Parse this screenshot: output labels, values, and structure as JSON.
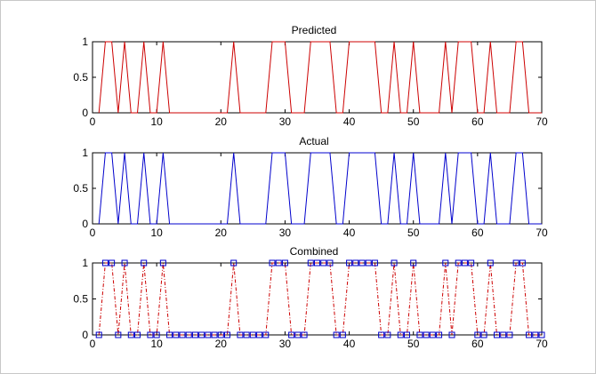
{
  "chart_data": [
    {
      "type": "line",
      "title": "Predicted",
      "xlim": [
        0,
        70
      ],
      "ylim": [
        0,
        1
      ],
      "xticks": [
        "0",
        "10",
        "20",
        "30",
        "40",
        "50",
        "60",
        "70"
      ],
      "yticks": [
        "0",
        "0.5",
        "1"
      ],
      "grid": false,
      "line_color": "#cc0000",
      "series": [
        {
          "x": [
            1,
            2,
            3,
            4,
            5,
            6,
            7,
            8,
            9,
            10,
            11,
            12,
            13,
            14,
            15,
            16,
            17,
            18,
            19,
            20,
            21,
            22,
            23,
            24,
            25,
            26,
            27,
            28,
            29,
            30,
            31,
            32,
            33,
            34,
            35,
            36,
            37,
            38,
            39,
            40,
            41,
            42,
            43,
            44,
            45,
            46,
            47,
            48,
            49,
            50,
            51,
            52,
            53,
            54,
            55,
            56,
            57,
            58,
            59,
            60,
            61,
            62,
            63,
            64,
            65,
            66,
            67,
            68,
            69,
            70
          ],
          "values": [
            0,
            1,
            1,
            0,
            1,
            0,
            0,
            1,
            0,
            0,
            1,
            0,
            0,
            0,
            0,
            0,
            0,
            0,
            0,
            0,
            0,
            1,
            0,
            0,
            0,
            0,
            0,
            1,
            1,
            1,
            0,
            0,
            0,
            1,
            1,
            1,
            1,
            0,
            0,
            1,
            1,
            1,
            1,
            1,
            0,
            0,
            1,
            0,
            0,
            1,
            0,
            0,
            0,
            0,
            1,
            0,
            1,
            1,
            1,
            0,
            0,
            1,
            0,
            0,
            0,
            1,
            1,
            0,
            0,
            0
          ]
        }
      ]
    },
    {
      "type": "line",
      "title": "Actual",
      "xlim": [
        0,
        70
      ],
      "ylim": [
        0,
        1
      ],
      "xticks": [
        "0",
        "10",
        "20",
        "30",
        "40",
        "50",
        "60",
        "70"
      ],
      "yticks": [
        "0",
        "0.5",
        "1"
      ],
      "grid": false,
      "line_color": "#0000cc",
      "series": [
        {
          "x": [
            1,
            2,
            3,
            4,
            5,
            6,
            7,
            8,
            9,
            10,
            11,
            12,
            13,
            14,
            15,
            16,
            17,
            18,
            19,
            20,
            21,
            22,
            23,
            24,
            25,
            26,
            27,
            28,
            29,
            30,
            31,
            32,
            33,
            34,
            35,
            36,
            37,
            38,
            39,
            40,
            41,
            42,
            43,
            44,
            45,
            46,
            47,
            48,
            49,
            50,
            51,
            52,
            53,
            54,
            55,
            56,
            57,
            58,
            59,
            60,
            61,
            62,
            63,
            64,
            65,
            66,
            67,
            68,
            69,
            70
          ],
          "values": [
            0,
            1,
            1,
            0,
            1,
            0,
            0,
            1,
            0,
            0,
            1,
            0,
            0,
            0,
            0,
            0,
            0,
            0,
            0,
            0,
            0,
            1,
            0,
            0,
            0,
            0,
            0,
            1,
            1,
            1,
            0,
            0,
            0,
            1,
            1,
            1,
            1,
            0,
            0,
            1,
            1,
            1,
            1,
            1,
            0,
            0,
            1,
            0,
            0,
            1,
            0,
            0,
            0,
            0,
            1,
            0,
            1,
            1,
            1,
            0,
            0,
            1,
            0,
            0,
            0,
            1,
            1,
            0,
            0,
            0
          ]
        }
      ]
    },
    {
      "type": "line",
      "title": "Combined",
      "xlim": [
        0,
        70
      ],
      "ylim": [
        0,
        1
      ],
      "xticks": [
        "0",
        "10",
        "20",
        "30",
        "40",
        "50",
        "60",
        "70"
      ],
      "yticks": [
        "0",
        "0.5",
        "1"
      ],
      "grid": false,
      "line_color": "#cc0000",
      "line_style": "dash-dot",
      "marker": "square",
      "marker_color": "#0000cc",
      "series": [
        {
          "x": [
            1,
            2,
            3,
            4,
            5,
            6,
            7,
            8,
            9,
            10,
            11,
            12,
            13,
            14,
            15,
            16,
            17,
            18,
            19,
            20,
            21,
            22,
            23,
            24,
            25,
            26,
            27,
            28,
            29,
            30,
            31,
            32,
            33,
            34,
            35,
            36,
            37,
            38,
            39,
            40,
            41,
            42,
            43,
            44,
            45,
            46,
            47,
            48,
            49,
            50,
            51,
            52,
            53,
            54,
            55,
            56,
            57,
            58,
            59,
            60,
            61,
            62,
            63,
            64,
            65,
            66,
            67,
            68,
            69,
            70
          ],
          "values": [
            0,
            1,
            1,
            0,
            1,
            0,
            0,
            1,
            0,
            0,
            1,
            0,
            0,
            0,
            0,
            0,
            0,
            0,
            0,
            0,
            0,
            1,
            0,
            0,
            0,
            0,
            0,
            1,
            1,
            1,
            0,
            0,
            0,
            1,
            1,
            1,
            1,
            0,
            0,
            1,
            1,
            1,
            1,
            1,
            0,
            0,
            1,
            0,
            0,
            1,
            0,
            0,
            0,
            0,
            1,
            0,
            1,
            1,
            1,
            0,
            0,
            1,
            0,
            0,
            0,
            1,
            1,
            0,
            0,
            0
          ]
        }
      ]
    }
  ]
}
